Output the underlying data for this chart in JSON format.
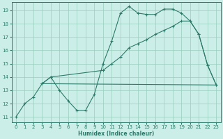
{
  "xlabel": "Humidex (Indice chaleur)",
  "bg_color": "#cceee8",
  "line_color": "#2d7a6a",
  "grid_color": "#99ccbb",
  "xlim": [
    -0.5,
    23.5
  ],
  "ylim": [
    10.6,
    19.6
  ],
  "xticks": [
    0,
    1,
    2,
    3,
    4,
    5,
    6,
    7,
    8,
    9,
    10,
    11,
    12,
    13,
    14,
    15,
    16,
    17,
    18,
    19,
    20,
    21,
    22,
    23
  ],
  "yticks": [
    11,
    12,
    13,
    14,
    15,
    16,
    17,
    18,
    19
  ],
  "line1_x": [
    0,
    1,
    2,
    3,
    4,
    5,
    6,
    7,
    8,
    9,
    10,
    11,
    12,
    13,
    14,
    15,
    16,
    17,
    18,
    19,
    20,
    21,
    22,
    23
  ],
  "line1_y": [
    11.0,
    12.0,
    12.5,
    13.5,
    14.0,
    13.0,
    12.2,
    11.5,
    11.5,
    12.7,
    15.0,
    16.7,
    18.8,
    19.3,
    18.8,
    18.7,
    18.7,
    19.1,
    19.1,
    18.8,
    18.2,
    17.2,
    14.9,
    13.4
  ],
  "line2_x": [
    3,
    4,
    10,
    11,
    12,
    13,
    14,
    15,
    16,
    17,
    18,
    19,
    20,
    21,
    22,
    23
  ],
  "line2_y": [
    13.5,
    14.0,
    14.5,
    15.0,
    15.5,
    16.2,
    16.5,
    16.8,
    17.2,
    17.5,
    17.8,
    18.2,
    18.2,
    17.2,
    14.9,
    13.4
  ],
  "line3_x": [
    3,
    23
  ],
  "line3_y": [
    13.5,
    13.4
  ]
}
